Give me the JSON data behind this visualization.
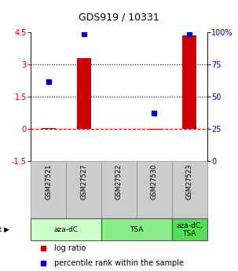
{
  "title": "GDS919 / 10331",
  "samples": [
    "GSM27521",
    "GSM27527",
    "GSM27522",
    "GSM27530",
    "GSM27523"
  ],
  "log_ratios": [
    0.05,
    3.3,
    0.0,
    -0.05,
    4.35
  ],
  "percentile_ranks": [
    62,
    99,
    null,
    37,
    99
  ],
  "agent_groups": [
    {
      "label": "aza-dC",
      "start": 0,
      "end": 2,
      "color": "#ccffcc"
    },
    {
      "label": "TSA",
      "start": 2,
      "end": 4,
      "color": "#88ee88"
    },
    {
      "label": "aza-dC,\nTSA",
      "start": 4,
      "end": 5,
      "color": "#55dd55"
    }
  ],
  "bar_color": "#cc0000",
  "dot_color": "#0000cc",
  "ylim_left": [
    -1.5,
    4.5
  ],
  "ylim_right": [
    0,
    100
  ],
  "yticks_left": [
    -1.5,
    0,
    1.5,
    3,
    4.5
  ],
  "ytick_labels_left": [
    "-1.5",
    "0",
    "1.5",
    "3",
    "4.5"
  ],
  "yticks_right": [
    0,
    25,
    50,
    75,
    100
  ],
  "ytick_labels_right": [
    "0",
    "25",
    "50",
    "75",
    "100%"
  ],
  "hlines": [
    0,
    1.5,
    3
  ],
  "hline_styles": [
    "dashed",
    "dotted",
    "dotted"
  ],
  "hline_colors": [
    "#cc0000",
    "#000000",
    "#000000"
  ],
  "bg_color": "#ffffff",
  "sample_box_color": "#cccccc",
  "legend_items": [
    {
      "color": "#cc0000",
      "label": "log ratio"
    },
    {
      "color": "#0000cc",
      "label": "percentile rank within the sample"
    }
  ]
}
